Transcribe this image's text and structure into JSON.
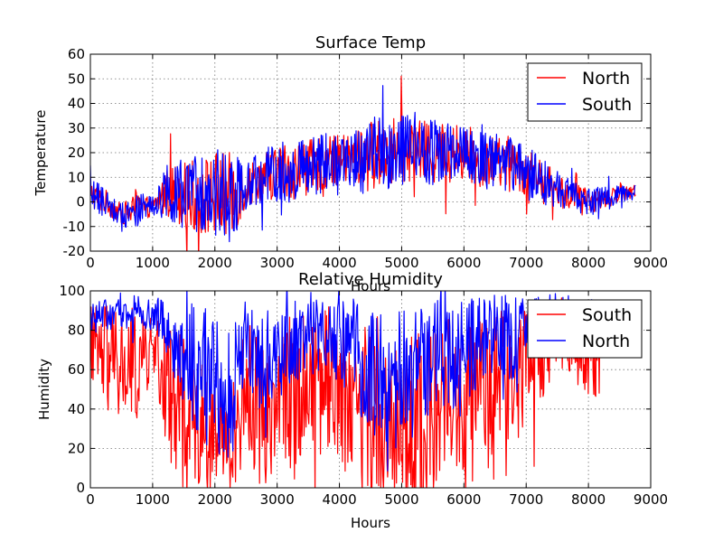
{
  "chart_data": [
    {
      "type": "line",
      "title": "Surface Temp",
      "xlabel": "Hours",
      "ylabel": "Temperature",
      "xlim": [
        0,
        9000
      ],
      "ylim": [
        -20,
        60
      ],
      "xticks": [
        0,
        1000,
        2000,
        3000,
        4000,
        5000,
        6000,
        7000,
        8000,
        9000
      ],
      "yticks": [
        -20,
        -10,
        0,
        10,
        20,
        30,
        40,
        50,
        60
      ],
      "grid": true,
      "legend_position": "top-right",
      "x_profile": [
        0,
        250,
        500,
        750,
        1000,
        1250,
        1500,
        1750,
        2000,
        2250,
        2500,
        2750,
        3000,
        3250,
        3500,
        3750,
        4000,
        4250,
        4500,
        4750,
        5000,
        5250,
        5500,
        5750,
        6000,
        6250,
        6500,
        6750,
        7000,
        7250,
        7500,
        7750,
        8000,
        8250,
        8500,
        8760
      ],
      "series": [
        {
          "name": "North",
          "color": "#ff0000",
          "x_end": 8760,
          "mean": [
            3,
            0,
            -5,
            -3,
            -2,
            5,
            3,
            2,
            3,
            2,
            6,
            10,
            12,
            13,
            14,
            16,
            17,
            18,
            19,
            20,
            21,
            21,
            20,
            20,
            19,
            17,
            16,
            15,
            12,
            8,
            5,
            2,
            0,
            1,
            3,
            4
          ],
          "amplitude": [
            6,
            5,
            4,
            7,
            3,
            11,
            13,
            16,
            18,
            18,
            9,
            10,
            12,
            12,
            11,
            11,
            10,
            11,
            14,
            14,
            14,
            12,
            13,
            12,
            11,
            11,
            10,
            11,
            10,
            9,
            7,
            6,
            5,
            4,
            3,
            2
          ]
        },
        {
          "name": "South",
          "color": "#0000ff",
          "x_end": 8760,
          "mean": [
            3,
            0,
            -5,
            -3,
            -2,
            5,
            3,
            2,
            3,
            2,
            6,
            10,
            12,
            13,
            14,
            16,
            17,
            18,
            19,
            20,
            21,
            21,
            20,
            20,
            19,
            17,
            16,
            15,
            12,
            8,
            5,
            2,
            0,
            1,
            3,
            4
          ],
          "amplitude": [
            7,
            6,
            5,
            8,
            4,
            12,
            14,
            17,
            19,
            19,
            10,
            11,
            13,
            13,
            12,
            12,
            11,
            12,
            15,
            15,
            15,
            13,
            14,
            13,
            12,
            12,
            11,
            12,
            11,
            10,
            8,
            7,
            6,
            5,
            4,
            3
          ]
        }
      ]
    },
    {
      "type": "line",
      "title": "Relative Humidity",
      "xlabel": "Hours",
      "ylabel": "Humidity",
      "xlim": [
        0,
        9000
      ],
      "ylim": [
        0,
        100
      ],
      "xticks": [
        0,
        1000,
        2000,
        3000,
        4000,
        5000,
        6000,
        7000,
        8000,
        9000
      ],
      "yticks": [
        0,
        20,
        40,
        60,
        80,
        100
      ],
      "grid": true,
      "legend_position": "top-right",
      "x_profile": [
        0,
        250,
        500,
        750,
        1000,
        1250,
        1500,
        1750,
        2000,
        2250,
        2500,
        2750,
        3000,
        3250,
        3500,
        3750,
        4000,
        4250,
        4500,
        4750,
        5000,
        5250,
        5500,
        5750,
        6000,
        6250,
        6500,
        6750,
        7000,
        7250,
        7500,
        7750,
        8000,
        8250,
        8500,
        8760
      ],
      "series": [
        {
          "name": "South",
          "color": "#ff0000",
          "x_end": 8200,
          "mean": [
            70,
            65,
            60,
            62,
            72,
            50,
            38,
            30,
            22,
            22,
            50,
            40,
            45,
            50,
            55,
            60,
            50,
            45,
            35,
            30,
            30,
            35,
            40,
            38,
            40,
            45,
            55,
            50,
            60,
            70,
            80,
            75,
            70,
            70,
            70,
            70
          ],
          "amplitude": [
            25,
            28,
            30,
            30,
            15,
            35,
            40,
            30,
            25,
            25,
            35,
            40,
            40,
            40,
            35,
            35,
            40,
            45,
            45,
            45,
            45,
            45,
            40,
            40,
            40,
            40,
            35,
            40,
            30,
            25,
            20,
            20,
            25,
            25,
            25,
            25
          ]
        },
        {
          "name": "North",
          "color": "#0000ff",
          "x_end": 8150,
          "mean": [
            88,
            88,
            88,
            90,
            88,
            80,
            65,
            60,
            50,
            50,
            75,
            65,
            70,
            75,
            75,
            80,
            75,
            70,
            60,
            55,
            55,
            60,
            68,
            65,
            70,
            72,
            80,
            75,
            82,
            88,
            90,
            88,
            85,
            85,
            85,
            85
          ],
          "amplitude": [
            8,
            8,
            8,
            8,
            8,
            15,
            30,
            35,
            35,
            35,
            20,
            30,
            28,
            22,
            22,
            18,
            22,
            26,
            35,
            38,
            38,
            35,
            28,
            30,
            25,
            25,
            18,
            22,
            15,
            10,
            10,
            10,
            12,
            12,
            12,
            12
          ]
        }
      ]
    }
  ]
}
